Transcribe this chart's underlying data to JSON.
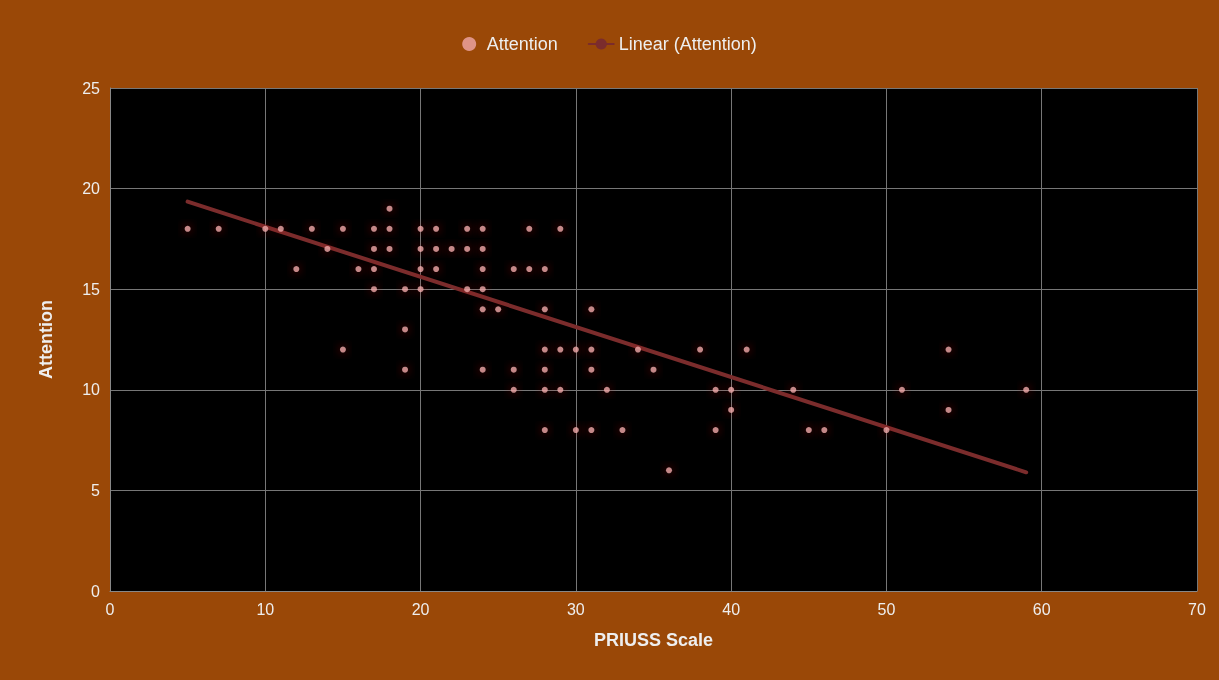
{
  "chart_data": {
    "type": "scatter",
    "xlabel": "PRIUSS Scale",
    "ylabel": "Attention",
    "xlim": [
      0,
      70
    ],
    "xticks": [
      0,
      10,
      20,
      30,
      40,
      50,
      60,
      70
    ],
    "ylim": [
      0,
      25
    ],
    "yticks": [
      0,
      5,
      10,
      15,
      20,
      25
    ],
    "grid": true,
    "legend": "top",
    "series": [
      {
        "name": "Attention",
        "color": "#f0a8a8",
        "marker": "circle",
        "x": [
          18,
          5,
          7,
          10,
          11,
          13,
          15,
          17,
          18,
          20,
          21,
          23,
          24,
          27,
          29,
          14,
          17,
          18,
          20,
          21,
          22,
          23,
          24,
          12,
          16,
          17,
          20,
          21,
          24,
          26,
          27,
          28,
          17,
          19,
          20,
          23,
          24,
          24,
          25,
          28,
          31,
          19,
          15,
          28,
          29,
          30,
          31,
          34,
          38,
          41,
          54,
          19,
          24,
          26,
          28,
          31,
          35,
          26,
          28,
          29,
          32,
          39,
          40,
          44,
          51,
          59,
          40,
          54,
          28,
          30,
          31,
          33,
          39,
          45,
          46,
          50,
          36
        ],
        "values": [
          19,
          18,
          18,
          18,
          18,
          18,
          18,
          18,
          18,
          18,
          18,
          18,
          18,
          18,
          18,
          17,
          17,
          17,
          17,
          17,
          17,
          17,
          17,
          16,
          16,
          16,
          16,
          16,
          16,
          16,
          16,
          16,
          15,
          15,
          15,
          15,
          15,
          14,
          14,
          14,
          14,
          13,
          12,
          12,
          12,
          12,
          12,
          12,
          12,
          12,
          12,
          11,
          11,
          11,
          11,
          11,
          11,
          10,
          10,
          10,
          10,
          10,
          10,
          10,
          10,
          10,
          9,
          9,
          8,
          8,
          8,
          8,
          8,
          8,
          8,
          8,
          6
        ]
      },
      {
        "name": "Linear (Attention)",
        "type": "line",
        "color": "#7b2c2c",
        "line_style": "solid",
        "marker": "none",
        "x": [
          5,
          59
        ],
        "values": [
          19.35,
          5.9
        ]
      }
    ]
  }
}
